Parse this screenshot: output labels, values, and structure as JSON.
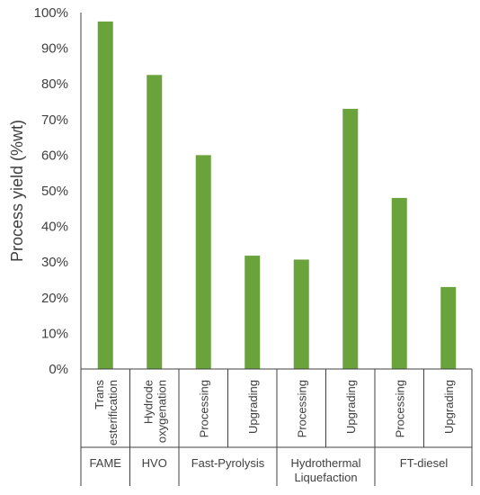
{
  "chart_data": {
    "type": "bar",
    "ylabel": "Process yield (%wt)",
    "ylim": [
      0,
      100
    ],
    "ytick_step": 10,
    "ytick_suffix": "%",
    "grid": false,
    "bar_color": "#6aa23c",
    "axis_color": "#404040",
    "groups": [
      {
        "name": "FAME",
        "bars": [
          {
            "label": [
              "Trans",
              "esterification"
            ],
            "value": 97.5
          }
        ]
      },
      {
        "name": "HVO",
        "bars": [
          {
            "label": [
              "Hydrode",
              "oxygenation"
            ],
            "value": 82.5
          }
        ]
      },
      {
        "name": "Fast-Pyrolysis",
        "bars": [
          {
            "label": [
              "Processing"
            ],
            "value": 60.0
          },
          {
            "label": [
              "Upgrading"
            ],
            "value": 31.8
          }
        ]
      },
      {
        "name": [
          "Hydrothermal",
          "Liquefaction"
        ],
        "bars": [
          {
            "label": [
              "Processing"
            ],
            "value": 30.7
          },
          {
            "label": [
              "Upgrading"
            ],
            "value": 73.0
          }
        ]
      },
      {
        "name": "FT-diesel",
        "bars": [
          {
            "label": [
              "Processing"
            ],
            "value": 48.0
          },
          {
            "label": [
              "Upgrading"
            ],
            "value": 23.0
          }
        ]
      }
    ]
  }
}
